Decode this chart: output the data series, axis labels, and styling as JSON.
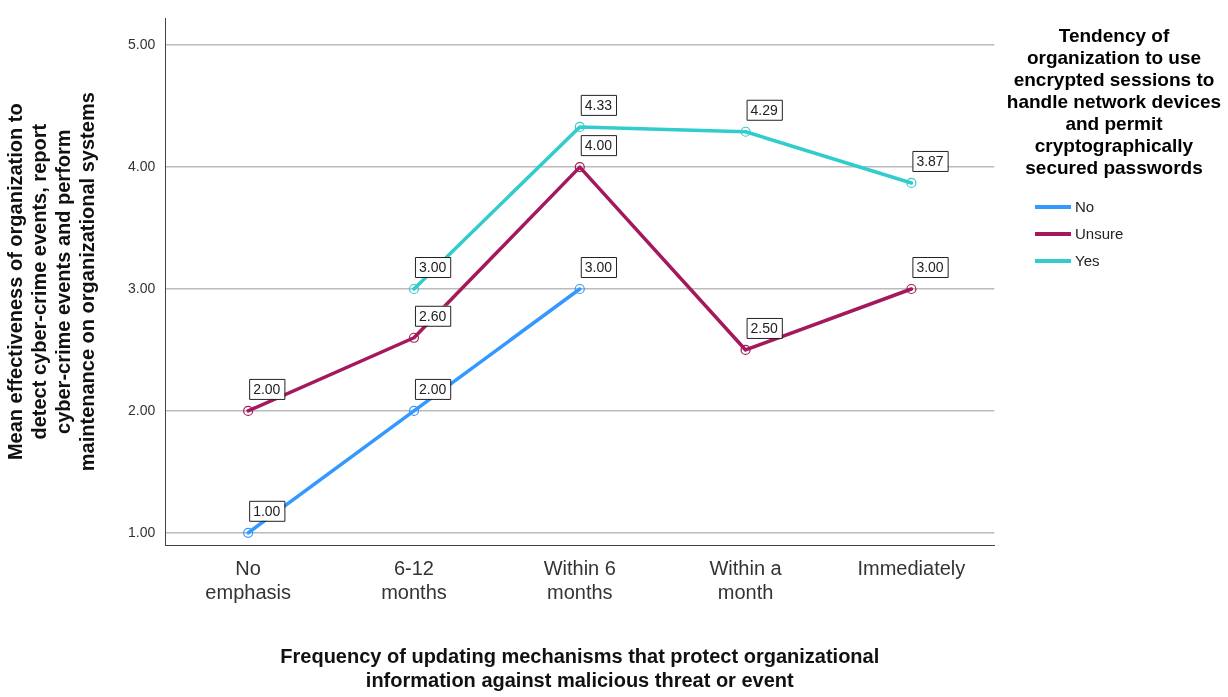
{
  "chart_data": {
    "type": "line",
    "xlabel": "Frequency of updating mechanisms that protect organizational information against malicious threat or event",
    "ylabel": "Mean effectiveness of organization to detect cyber-crime events, report cyber-crime events and perform maintenance on organizational systems",
    "legend_title": "Tendency of organization to use encrypted sessions to handle network devices and permit cryptographically secured passwords",
    "categories": [
      "No emphasis",
      "6-12 months",
      "Within 6 months",
      "Within a month",
      "Immediately"
    ],
    "series": [
      {
        "name": "No",
        "color": "#3399ff",
        "values": [
          1,
          2,
          3,
          null,
          null
        ],
        "value_labels": [
          "1.00",
          "2.00",
          "3.00",
          null,
          null
        ]
      },
      {
        "name": "Unsure",
        "color": "#a3195b",
        "values": [
          2,
          2.6,
          4,
          2.5,
          3
        ],
        "value_labels": [
          "2.00",
          "2.60",
          "4.00",
          "2.50",
          "3.00"
        ]
      },
      {
        "name": "Yes",
        "color": "#33cccc",
        "values": [
          null,
          3,
          4.33,
          4.29,
          3.87
        ],
        "value_labels": [
          null,
          "3.00",
          "4.33",
          "4.29",
          "3.87"
        ]
      }
    ],
    "ylim": [
      0.9,
      5.22
    ],
    "yticks": [
      {
        "value": 1,
        "label": "1.00"
      },
      {
        "value": 2,
        "label": "2.00"
      },
      {
        "value": 3,
        "label": "3.00"
      },
      {
        "value": 4,
        "label": "4.00"
      },
      {
        "value": 5,
        "label": "5.00"
      }
    ],
    "grid": "y",
    "legend": "right",
    "marker": "circle",
    "line_style": "solid"
  }
}
